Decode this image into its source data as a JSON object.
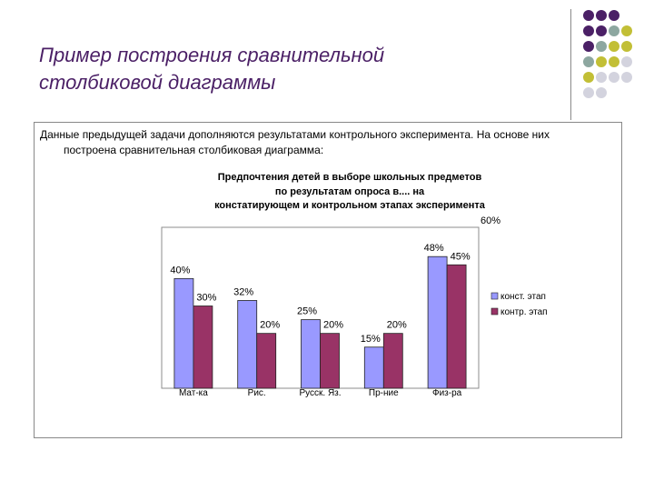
{
  "slide": {
    "title_line1": "Пример построения сравнительной",
    "title_line2": "столбиковой диаграммы"
  },
  "intro": {
    "line1": "Данные предыдущей задачи дополняются результатами контрольного эксперимента. На основе них",
    "line2": "построена сравнительная столбиковая диаграмма:"
  },
  "colors": {
    "title": "#4b2066",
    "dots": [
      "#4b2066",
      "#8da7a0",
      "#c2bf36",
      "#d3d3de"
    ],
    "series1": "#9999ff",
    "series2": "#993366"
  },
  "chart_data": {
    "type": "bar",
    "title_lines": [
      "Предпочтения детей в выборе школьных предметов",
      "по результатам опроса в.... на",
      "констатирующем и контрольном этапах эксперимента"
    ],
    "categories": [
      "Мат-ка",
      "Рис.",
      "Русск. Яз.",
      "Пр-ние",
      "Физ-ра"
    ],
    "series": [
      {
        "name": "конст. этап",
        "values": [
          40,
          32,
          25,
          15,
          48
        ],
        "labels": [
          "40%",
          "32%",
          "25%",
          "15%",
          "48%"
        ]
      },
      {
        "name": "контр. этап",
        "values": [
          30,
          20,
          20,
          20,
          45
        ],
        "labels": [
          "30%",
          "20%",
          "20%",
          "20%",
          "45%"
        ]
      }
    ],
    "extra_label": "60%",
    "ylim": [
      0,
      60
    ],
    "grid": false,
    "legend": "right"
  }
}
